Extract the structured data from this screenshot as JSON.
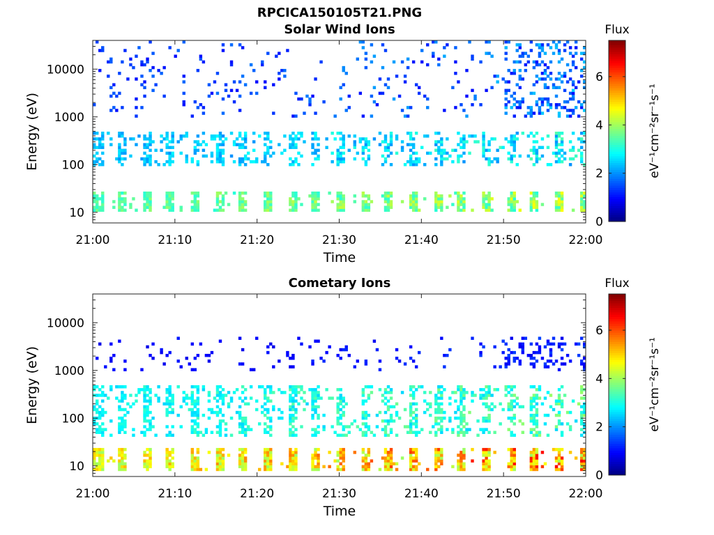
{
  "figure": {
    "title": "RPCICA150105T21.PNG"
  },
  "colors": {
    "colormap": [
      "#00007f",
      "#0000ff",
      "#007fff",
      "#00ffff",
      "#7fff7f",
      "#ffff00",
      "#ff7f00",
      "#ff0000",
      "#7f0000"
    ]
  },
  "chart_data": [
    {
      "type": "heatmap",
      "title": "Solar Wind Ions",
      "xlabel": "Time",
      "ylabel": "Energy (eV)",
      "x_ticks": [
        "21:00",
        "21:10",
        "21:20",
        "21:30",
        "21:40",
        "21:50",
        "22:00"
      ],
      "xlim": [
        "21:00",
        "22:00"
      ],
      "y_scale": "log",
      "y_ticks": [
        10,
        100,
        1000,
        10000
      ],
      "y_tick_labels": [
        "10",
        "100",
        "1000",
        "10000"
      ],
      "ylim": [
        6,
        40000
      ],
      "colorbar": {
        "title": "Flux",
        "label": "eV⁻¹cm⁻²sr⁻¹s⁻¹",
        "range": [
          0,
          7.5
        ],
        "ticks": [
          0,
          2,
          4,
          6
        ],
        "tick_labels": [
          "0",
          "2",
          "4",
          "6"
        ]
      },
      "description_bands": [
        {
          "energy_eV": [
            10,
            28
          ],
          "flux": [
            2.5,
            4.8
          ],
          "note": "periodic vertical stripes"
        },
        {
          "energy_eV": [
            100,
            500
          ],
          "flux": [
            1.5,
            3.5
          ],
          "note": "scattered patches"
        },
        {
          "energy_eV": [
            1000,
            40000
          ],
          "flux": [
            0.5,
            2.5
          ],
          "note": "sparse dots, denser after 21:50"
        }
      ]
    },
    {
      "type": "heatmap",
      "title": "Cometary Ions",
      "xlabel": "Time",
      "ylabel": "Energy (eV)",
      "x_ticks": [
        "21:00",
        "21:10",
        "21:20",
        "21:30",
        "21:40",
        "21:50",
        "22:00"
      ],
      "xlim": [
        "21:00",
        "22:00"
      ],
      "y_scale": "log",
      "y_ticks": [
        10,
        100,
        1000,
        10000
      ],
      "y_tick_labels": [
        "10",
        "100",
        "1000",
        "10000"
      ],
      "ylim": [
        6,
        40000
      ],
      "colorbar": {
        "title": "Flux",
        "label": "eV⁻¹cm⁻²sr⁻¹s⁻¹",
        "range": [
          0,
          7.5
        ],
        "ticks": [
          0,
          2,
          4,
          6
        ],
        "tick_labels": [
          "0",
          "2",
          "4",
          "6"
        ]
      },
      "description_bands": [
        {
          "energy_eV": [
            8,
            25
          ],
          "flux": [
            3,
            6.8
          ],
          "note": "strong periodic stripes"
        },
        {
          "energy_eV": [
            40,
            500
          ],
          "flux": [
            2,
            4
          ],
          "note": "broad periodic features"
        },
        {
          "energy_eV": [
            1000,
            5000
          ],
          "flux": [
            0.5,
            1.5
          ],
          "note": "sparse dots"
        }
      ]
    }
  ]
}
